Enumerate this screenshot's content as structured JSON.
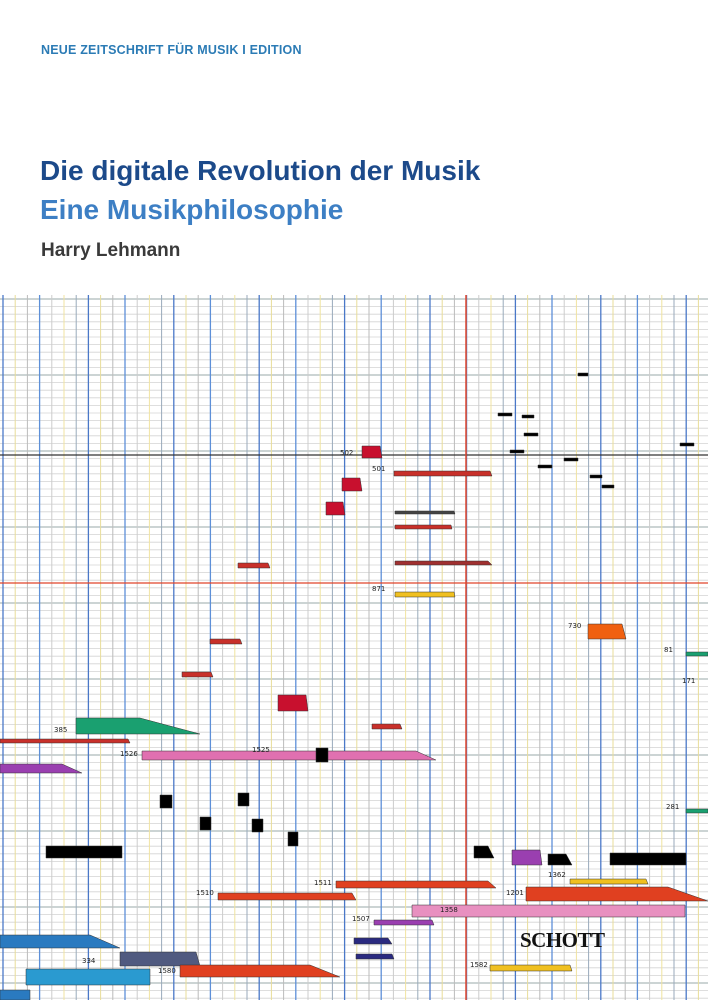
{
  "header": {
    "series": "NEUE ZEITSCHRIFT FÜR MUSIK I EDITION",
    "title": "Die digitale Revolution der Musik",
    "subtitle": "Eine Musikphilosophie",
    "author": "Harry Lehmann"
  },
  "score": {
    "labels": [
      "502",
      "501",
      "730",
      "871",
      "385",
      "1526",
      "1525",
      "1511",
      "1510",
      "1201",
      "1362",
      "1358",
      "1507",
      "1582",
      "1580",
      "334",
      "281",
      "171",
      "81"
    ]
  },
  "publisher": "SCHOTT"
}
